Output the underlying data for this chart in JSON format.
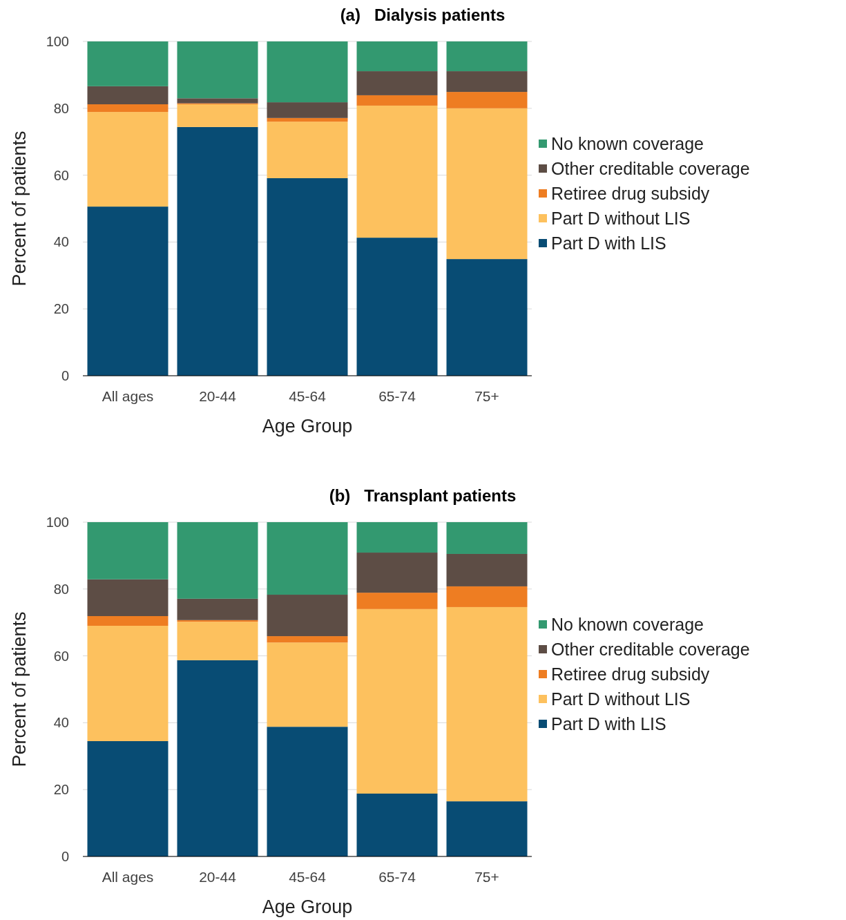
{
  "chart_data": [
    {
      "type": "bar",
      "title": "(a)   Dialysis patients",
      "xlabel": "Age Group",
      "ylabel": "Percent of patients",
      "categories": [
        "All ages",
        "20-44",
        "45-64",
        "65-74",
        "75+"
      ],
      "stacked": true,
      "ylim": [
        0,
        100
      ],
      "yticks": [
        0,
        20,
        40,
        60,
        80,
        100
      ],
      "grid": "y",
      "legend": "right",
      "series": [
        {
          "name": "Part D with LIS",
          "color": "#084c74",
          "values": [
            50.6,
            74.4,
            59.1,
            41.3,
            34.9
          ]
        },
        {
          "name": "Part D without LIS",
          "color": "#fdc15e",
          "values": [
            28.3,
            6.8,
            16.9,
            39.5,
            45.1
          ]
        },
        {
          "name": "Retiree drug subsidy",
          "color": "#ee7d22",
          "values": [
            2.3,
            0.3,
            1.1,
            3.1,
            4.9
          ]
        },
        {
          "name": "Other creditable coverage",
          "color": "#5d4d45",
          "values": [
            5.4,
            1.5,
            4.7,
            7.2,
            6.2
          ]
        },
        {
          "name": "No known coverage",
          "color": "#339970",
          "values": [
            13.4,
            17.0,
            18.2,
            8.9,
            8.9
          ]
        }
      ]
    },
    {
      "type": "bar",
      "title": "(b)   Transplant patients",
      "xlabel": "Age Group",
      "ylabel": "Percent of patients",
      "categories": [
        "All ages",
        "20-44",
        "45-64",
        "65-74",
        "75+"
      ],
      "stacked": true,
      "ylim": [
        0,
        100
      ],
      "yticks": [
        0,
        20,
        40,
        60,
        80,
        100
      ],
      "grid": "y",
      "legend": "right",
      "series": [
        {
          "name": "Part D with LIS",
          "color": "#084c74",
          "values": [
            34.5,
            58.7,
            38.8,
            18.8,
            16.5
          ]
        },
        {
          "name": "Part D without LIS",
          "color": "#fdc15e",
          "values": [
            34.5,
            11.5,
            25.2,
            55.2,
            58.1
          ]
        },
        {
          "name": "Retiree drug subsidy",
          "color": "#ee7d22",
          "values": [
            2.9,
            0.5,
            1.9,
            4.9,
            6.2
          ]
        },
        {
          "name": "Other creditable coverage",
          "color": "#5d4d45",
          "values": [
            11.0,
            6.4,
            12.4,
            12.0,
            9.7
          ]
        },
        {
          "name": "No known coverage",
          "color": "#339970",
          "values": [
            17.1,
            22.9,
            21.7,
            9.1,
            9.5
          ]
        }
      ]
    }
  ]
}
